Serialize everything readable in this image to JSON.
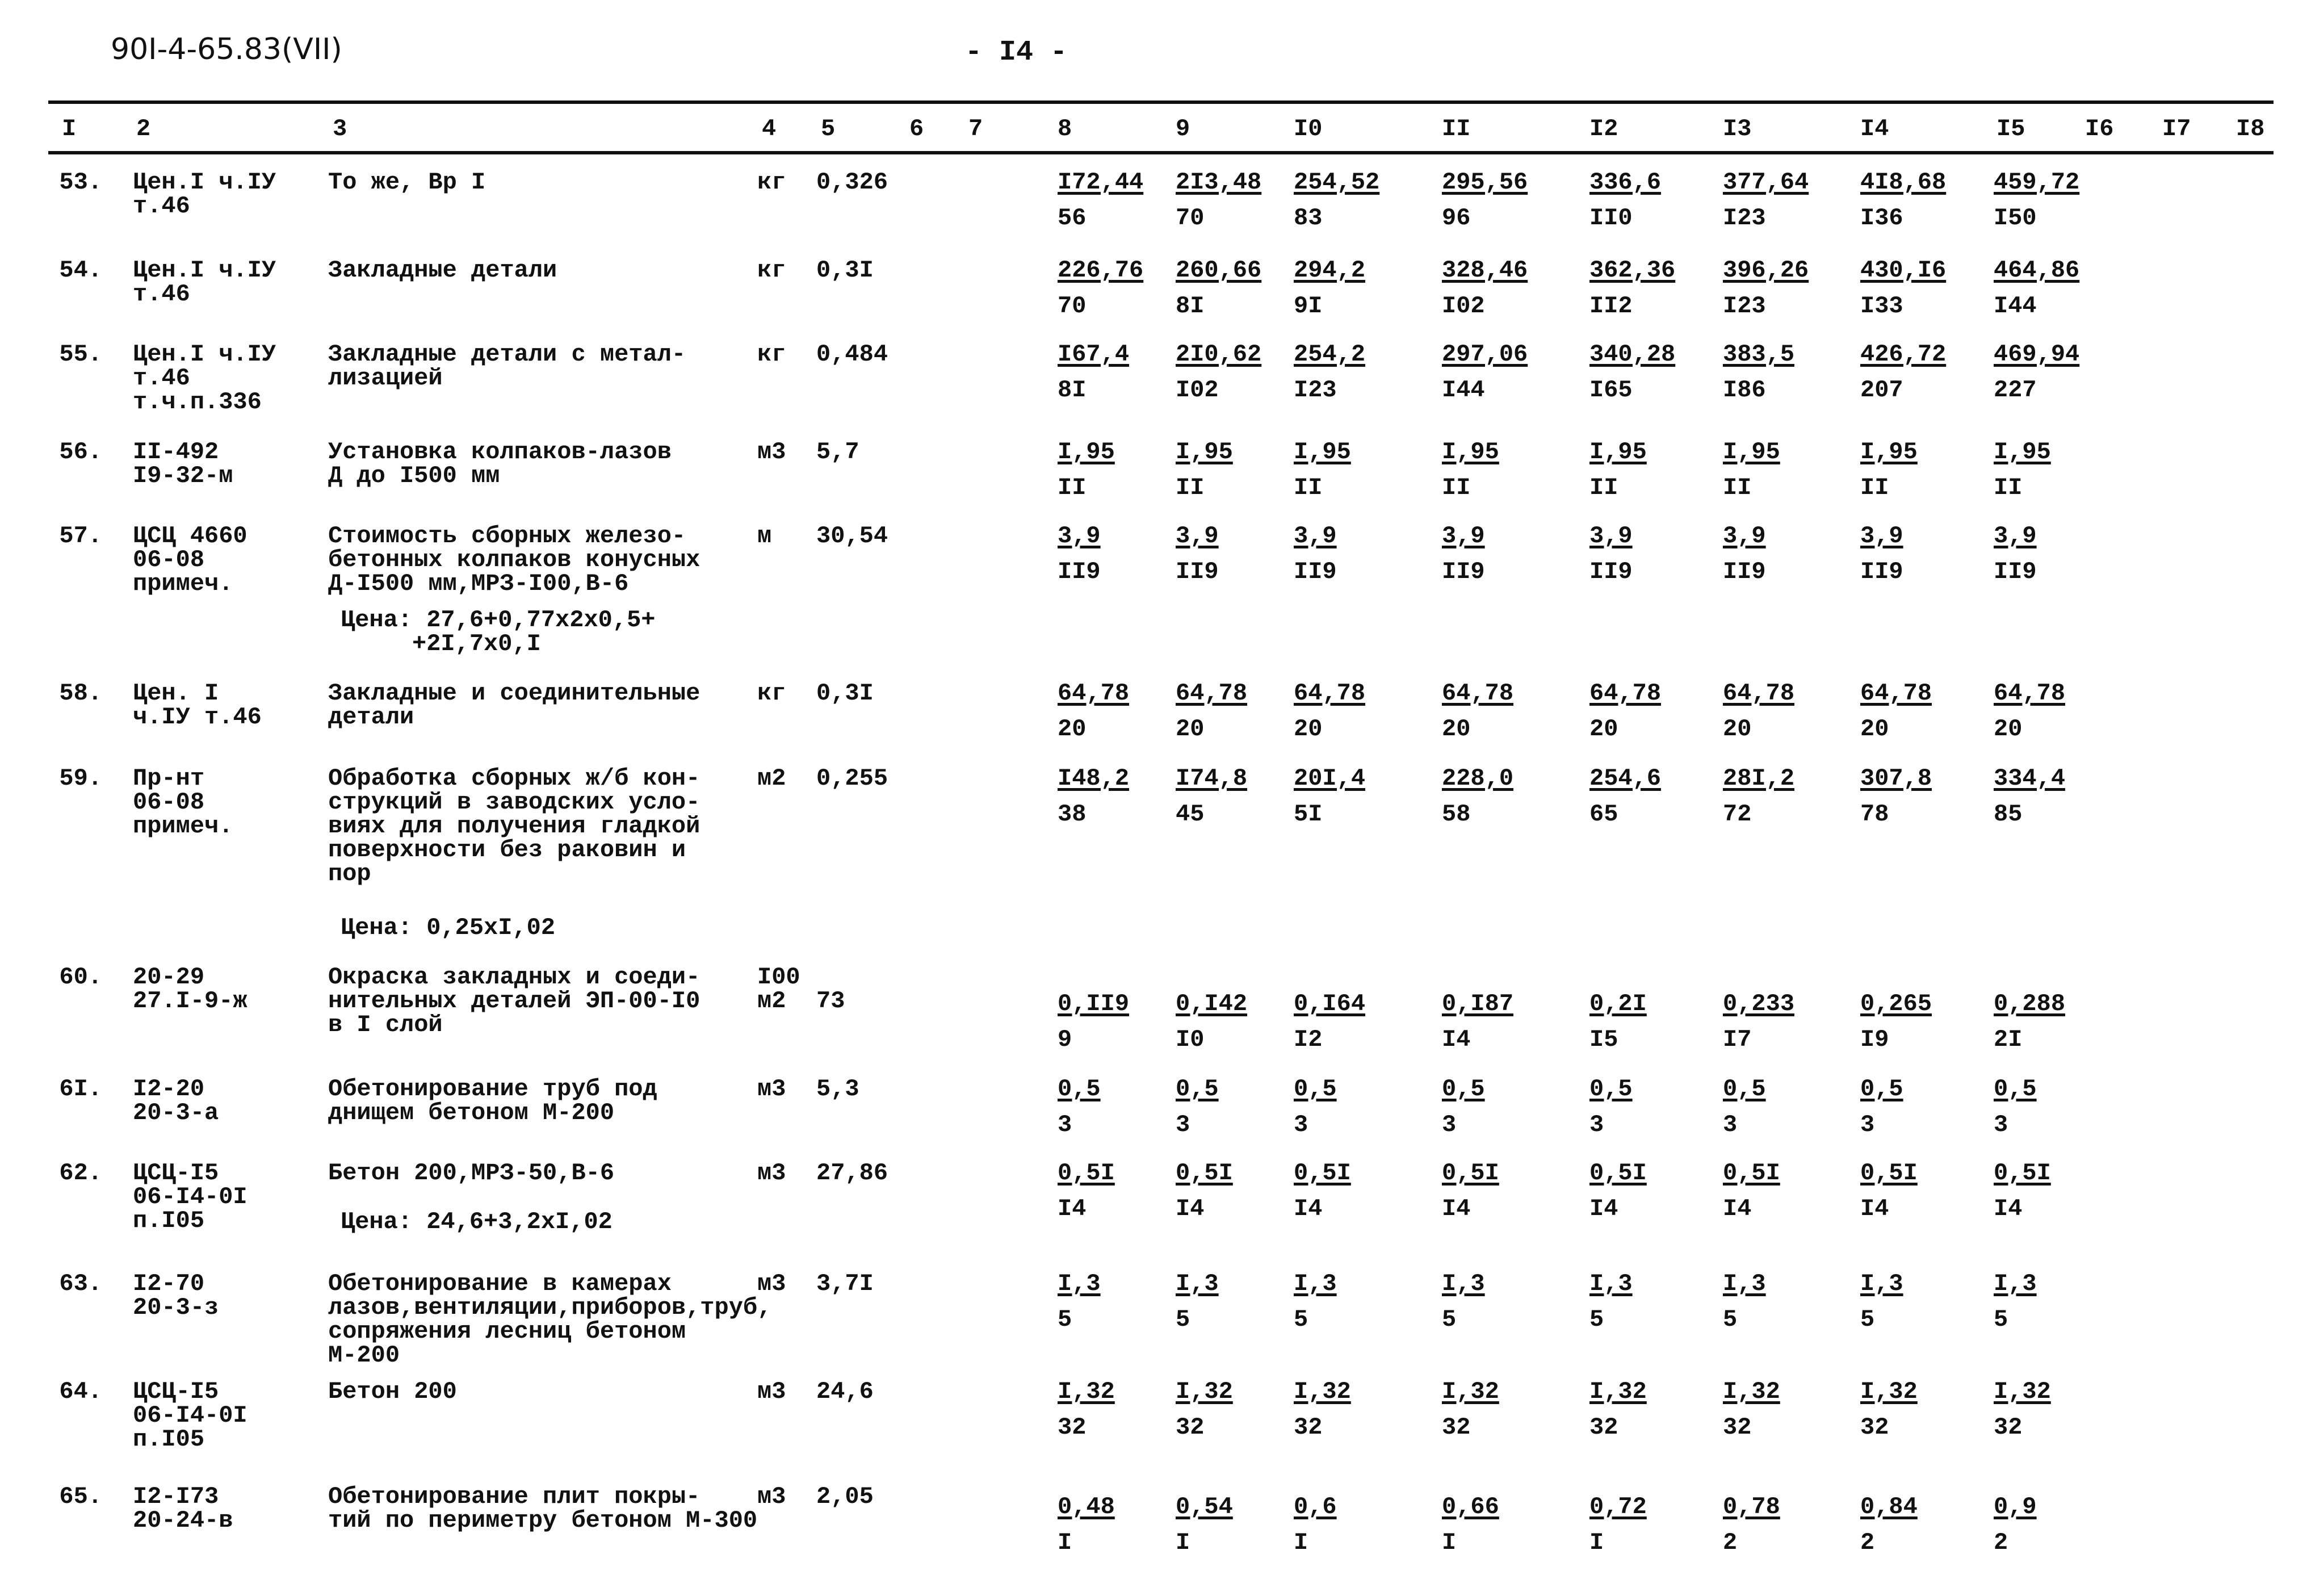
{
  "header": {
    "doc_code": "90I-4-65.83(VII)",
    "page_number": "- I4 -"
  },
  "columns": [
    "I",
    "2",
    "3",
    "4",
    "5",
    "6",
    "7",
    "8",
    "9",
    "I0",
    "II",
    "I2",
    "I3",
    "I4",
    "I5",
    "I6",
    "I7",
    "I8"
  ],
  "rows": [
    {
      "num": "53.",
      "code": [
        "Цен.I ч.IУ",
        "т.46"
      ],
      "desc": [
        "То же, Вр I"
      ],
      "unit": [
        "кг"
      ],
      "qty": "0,326",
      "values": [
        [
          "I72,44",
          "56"
        ],
        [
          "2I3,48",
          "70"
        ],
        [
          "254,52",
          "83"
        ],
        [
          "295,56",
          "96"
        ],
        [
          "336,6",
          "II0"
        ],
        [
          "377,64",
          "I23"
        ],
        [
          "4I8,68",
          "I36"
        ],
        [
          "459,72",
          "I50"
        ]
      ]
    },
    {
      "num": "54.",
      "code": [
        "Цен.I ч.IУ",
        "т.46"
      ],
      "desc": [
        "Закладные детали"
      ],
      "unit": [
        "кг"
      ],
      "qty": "0,3I",
      "values": [
        [
          "226,76",
          "70"
        ],
        [
          "260,66",
          "8I"
        ],
        [
          "294,2",
          "9I"
        ],
        [
          "328,46",
          "I02"
        ],
        [
          "362,36",
          "II2"
        ],
        [
          "396,26",
          "I23"
        ],
        [
          "430,I6",
          "I33"
        ],
        [
          "464,86",
          "I44"
        ]
      ]
    },
    {
      "num": "55.",
      "code": [
        "Цен.I ч.IУ",
        "т.46",
        "т.ч.п.336"
      ],
      "desc": [
        "Закладные детали с метал-",
        "лизацией"
      ],
      "unit": [
        "кг"
      ],
      "qty": "0,484",
      "values": [
        [
          "I67,4",
          "8I"
        ],
        [
          "2I0,62",
          "I02"
        ],
        [
          "254,2",
          "I23"
        ],
        [
          "297,06",
          "I44"
        ],
        [
          "340,28",
          "I65"
        ],
        [
          "383,5",
          "I86"
        ],
        [
          "426,72",
          "207"
        ],
        [
          "469,94",
          "227"
        ]
      ]
    },
    {
      "num": "56.",
      "code": [
        "II-492",
        "I9-32-м"
      ],
      "desc": [
        "Установка колпаков-лазов",
        "Д до I500 мм"
      ],
      "unit": [
        "м3"
      ],
      "qty": "5,7",
      "values": [
        [
          "I,95",
          "II"
        ],
        [
          "I,95",
          "II"
        ],
        [
          "I,95",
          "II"
        ],
        [
          "I,95",
          "II"
        ],
        [
          "I,95",
          "II"
        ],
        [
          "I,95",
          "II"
        ],
        [
          "I,95",
          "II"
        ],
        [
          "I,95",
          "II"
        ]
      ]
    },
    {
      "num": "57.",
      "code": [
        "ЦСЦ 4660",
        "06-08",
        "примеч."
      ],
      "desc": [
        "Стоимость сборных железо-",
        "бетонных колпаков конусных",
        "Д-I500 мм,МРЗ-I00,В-6"
      ],
      "price": [
        "Цена: 27,6+0,77x2x0,5+",
        "     +2I,7x0,I"
      ],
      "unit": [
        "м"
      ],
      "qty": "30,54",
      "values": [
        [
          "3,9",
          "II9"
        ],
        [
          "3,9",
          "II9"
        ],
        [
          "3,9",
          "II9"
        ],
        [
          "3,9",
          "II9"
        ],
        [
          "3,9",
          "II9"
        ],
        [
          "3,9",
          "II9"
        ],
        [
          "3,9",
          "II9"
        ],
        [
          "3,9",
          "II9"
        ]
      ]
    },
    {
      "num": "58.",
      "code": [
        "Цен. I",
        "ч.IУ т.46"
      ],
      "desc": [
        "Закладные и соединительные",
        "детали"
      ],
      "unit": [
        "кг"
      ],
      "qty": "0,3I",
      "values": [
        [
          "64,78",
          "20"
        ],
        [
          "64,78",
          "20"
        ],
        [
          "64,78",
          "20"
        ],
        [
          "64,78",
          "20"
        ],
        [
          "64,78",
          "20"
        ],
        [
          "64,78",
          "20"
        ],
        [
          "64,78",
          "20"
        ],
        [
          "64,78",
          "20"
        ]
      ]
    },
    {
      "num": "59.",
      "code": [
        "Пр-нт",
        "06-08",
        "примеч."
      ],
      "desc": [
        "Обработка сборных ж/б кон-",
        "струкций в заводских усло-",
        "виях для получения гладкой",
        "поверхности без раковин и",
        "пор"
      ],
      "price": [
        "Цена: 0,25xI,02"
      ],
      "unit": [
        "м2"
      ],
      "qty": "0,255",
      "values": [
        [
          "I48,2",
          "38"
        ],
        [
          "I74,8",
          "45"
        ],
        [
          "20I,4",
          "5I"
        ],
        [
          "228,0",
          "58"
        ],
        [
          "254,6",
          "65"
        ],
        [
          "28I,2",
          "72"
        ],
        [
          "307,8",
          "78"
        ],
        [
          "334,4",
          "85"
        ]
      ]
    },
    {
      "num": "60.",
      "code": [
        "20-29",
        "27.I-9-ж"
      ],
      "desc": [
        "Окраска закладных и соеди-",
        "нительных деталей ЭП-00-I0",
        "в I слой"
      ],
      "unit": [
        "I00",
        "м2"
      ],
      "qty": "73",
      "values": [
        [
          "0,II9",
          "9"
        ],
        [
          "0,I42",
          "I0"
        ],
        [
          "0,I64",
          "I2"
        ],
        [
          "0,I87",
          "I4"
        ],
        [
          "0,2I",
          "I5"
        ],
        [
          "0,233",
          "I7"
        ],
        [
          "0,265",
          "I9"
        ],
        [
          "0,288",
          "2I"
        ]
      ]
    },
    {
      "num": "6I.",
      "code": [
        "I2-20",
        "20-3-а"
      ],
      "desc": [
        "Обетонирование труб под",
        "днищем бетоном М-200"
      ],
      "unit": [
        "м3"
      ],
      "qty": "5,3",
      "values": [
        [
          "0,5",
          "3"
        ],
        [
          "0,5",
          "3"
        ],
        [
          "0,5",
          "3"
        ],
        [
          "0,5",
          "3"
        ],
        [
          "0,5",
          "3"
        ],
        [
          "0,5",
          "3"
        ],
        [
          "0,5",
          "3"
        ],
        [
          "0,5",
          "3"
        ]
      ]
    },
    {
      "num": "62.",
      "code": [
        "ЦСЦ-I5",
        "06-I4-0I",
        "п.I05"
      ],
      "desc": [
        "Бетон 200,МРЗ-50,В-6"
      ],
      "price": [
        "Цена: 24,6+3,2xI,02"
      ],
      "unit": [
        "м3"
      ],
      "qty": "27,86",
      "values": [
        [
          "0,5I",
          "I4"
        ],
        [
          "0,5I",
          "I4"
        ],
        [
          "0,5I",
          "I4"
        ],
        [
          "0,5I",
          "I4"
        ],
        [
          "0,5I",
          "I4"
        ],
        [
          "0,5I",
          "I4"
        ],
        [
          "0,5I",
          "I4"
        ],
        [
          "0,5I",
          "I4"
        ]
      ]
    },
    {
      "num": "63.",
      "code": [
        "I2-70",
        "20-3-з"
      ],
      "desc": [
        "Обетонирование в камерах",
        "лазов,вентиляции,приборов,труб,",
        "сопряжения лесниц бетоном",
        "М-200"
      ],
      "unit": [
        "м3"
      ],
      "qty": "3,7I",
      "values": [
        [
          "I,3",
          "5"
        ],
        [
          "I,3",
          "5"
        ],
        [
          "I,3",
          "5"
        ],
        [
          "I,3",
          "5"
        ],
        [
          "I,3",
          "5"
        ],
        [
          "I,3",
          "5"
        ],
        [
          "I,3",
          "5"
        ],
        [
          "I,3",
          "5"
        ]
      ]
    },
    {
      "num": "64.",
      "code": [
        "ЦСЦ-I5",
        "06-I4-0I",
        "п.I05"
      ],
      "desc": [
        "Бетон 200"
      ],
      "unit": [
        "м3"
      ],
      "qty": "24,6",
      "values": [
        [
          "I,32",
          "32"
        ],
        [
          "I,32",
          "32"
        ],
        [
          "I,32",
          "32"
        ],
        [
          "I,32",
          "32"
        ],
        [
          "I,32",
          "32"
        ],
        [
          "I,32",
          "32"
        ],
        [
          "I,32",
          "32"
        ],
        [
          "I,32",
          "32"
        ]
      ]
    },
    {
      "num": "65.",
      "code": [
        "I2-I73",
        "20-24-в"
      ],
      "desc": [
        "Обетонирование плит покры-",
        "тий по периметру бетоном М-300"
      ],
      "unit": [
        "м3"
      ],
      "qty": "2,05",
      "values": [
        [
          "0,48",
          "I"
        ],
        [
          "0,54",
          "I"
        ],
        [
          "0,6",
          "I"
        ],
        [
          "0,66",
          "I"
        ],
        [
          "0,72",
          "I"
        ],
        [
          "0,78",
          "2"
        ],
        [
          "0,84",
          "2"
        ],
        [
          "0,9",
          "2"
        ]
      ]
    }
  ]
}
